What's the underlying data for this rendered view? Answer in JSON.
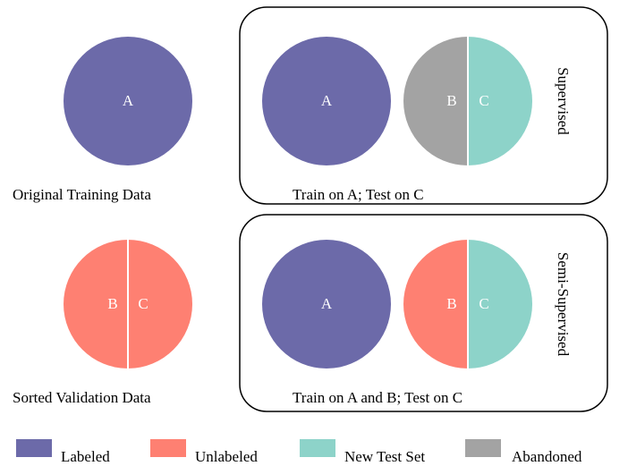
{
  "panels": [
    {
      "caption": "Original Training Data",
      "segments": [
        "A"
      ]
    },
    {
      "caption": "Sorted Validation Data",
      "segments": [
        "B",
        "C"
      ]
    }
  ],
  "boxes": [
    {
      "title": "Supervised",
      "caption": "Train on A; Test on C",
      "circles": [
        [
          "A"
        ],
        [
          "B",
          "C"
        ]
      ]
    },
    {
      "title": "Semi-Supervised",
      "caption": "Train on A and B; Test on C",
      "circles": [
        [
          "A"
        ],
        [
          "B",
          "C"
        ]
      ]
    }
  ],
  "legend": [
    "Labeled",
    "Unlabeled",
    "New Test Set",
    "Abandoned"
  ]
}
